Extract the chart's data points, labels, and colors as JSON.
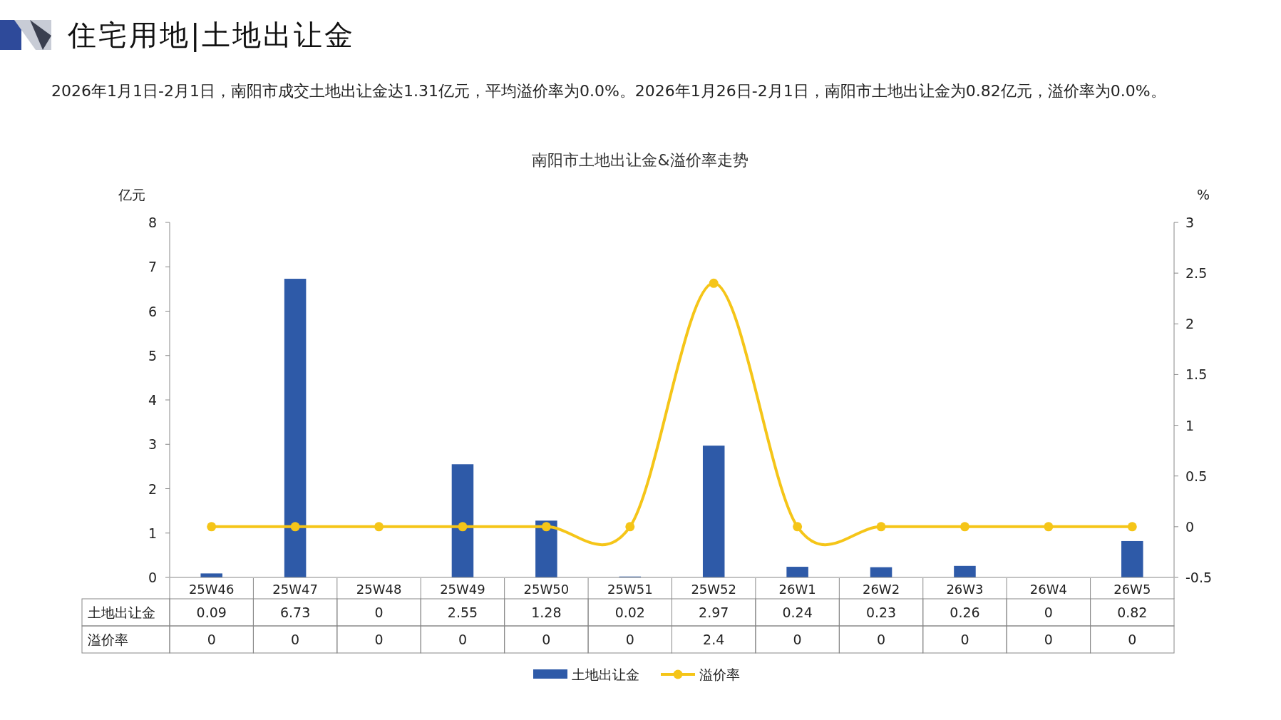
{
  "chart_data": {
    "type": "bar",
    "title": "住宅用地|土地出让金",
    "subtitle": "2026年1月1日-2月1日，南阳市成交土地出让金达1.31亿元，平均溢价率为0.0%。2026年1月26日-2月1日，南阳市土地出让金为0.82亿元，溢价率为0.0%。",
    "annotations": [
      "南阳市土地出让金&溢价率走势"
    ],
    "categories": [
      "25W46",
      "25W47",
      "25W48",
      "25W49",
      "25W50",
      "25W51",
      "25W52",
      "26W1",
      "26W2",
      "26W3",
      "26W4",
      "26W5"
    ],
    "series": [
      {
        "name": "土地出让金",
        "color": "#2e5aa8",
        "values": [
          0.09,
          6.73,
          0,
          2.55,
          1.28,
          0.02,
          2.97,
          0.24,
          0.23,
          0.26,
          0,
          0.82
        ]
      },
      {
        "name": "溢价率",
        "type": "line",
        "axis": "y2",
        "color": "#f5c518",
        "values": [
          0,
          0,
          0,
          0,
          0,
          0,
          2.4,
          0,
          0,
          0,
          0,
          0
        ]
      }
    ],
    "ylabel": "亿元",
    "y2label": "%",
    "ylim": [
      0,
      8
    ],
    "yticks": [
      0,
      1,
      2,
      3,
      4,
      5,
      6,
      7,
      8
    ],
    "y2lim": [
      -0.5,
      3
    ],
    "y2ticks": [
      -0.5,
      0,
      0.5,
      1,
      1.5,
      2,
      2.5,
      3
    ],
    "data_labels": true,
    "legend": "bottom",
    "marker": "circle"
  }
}
